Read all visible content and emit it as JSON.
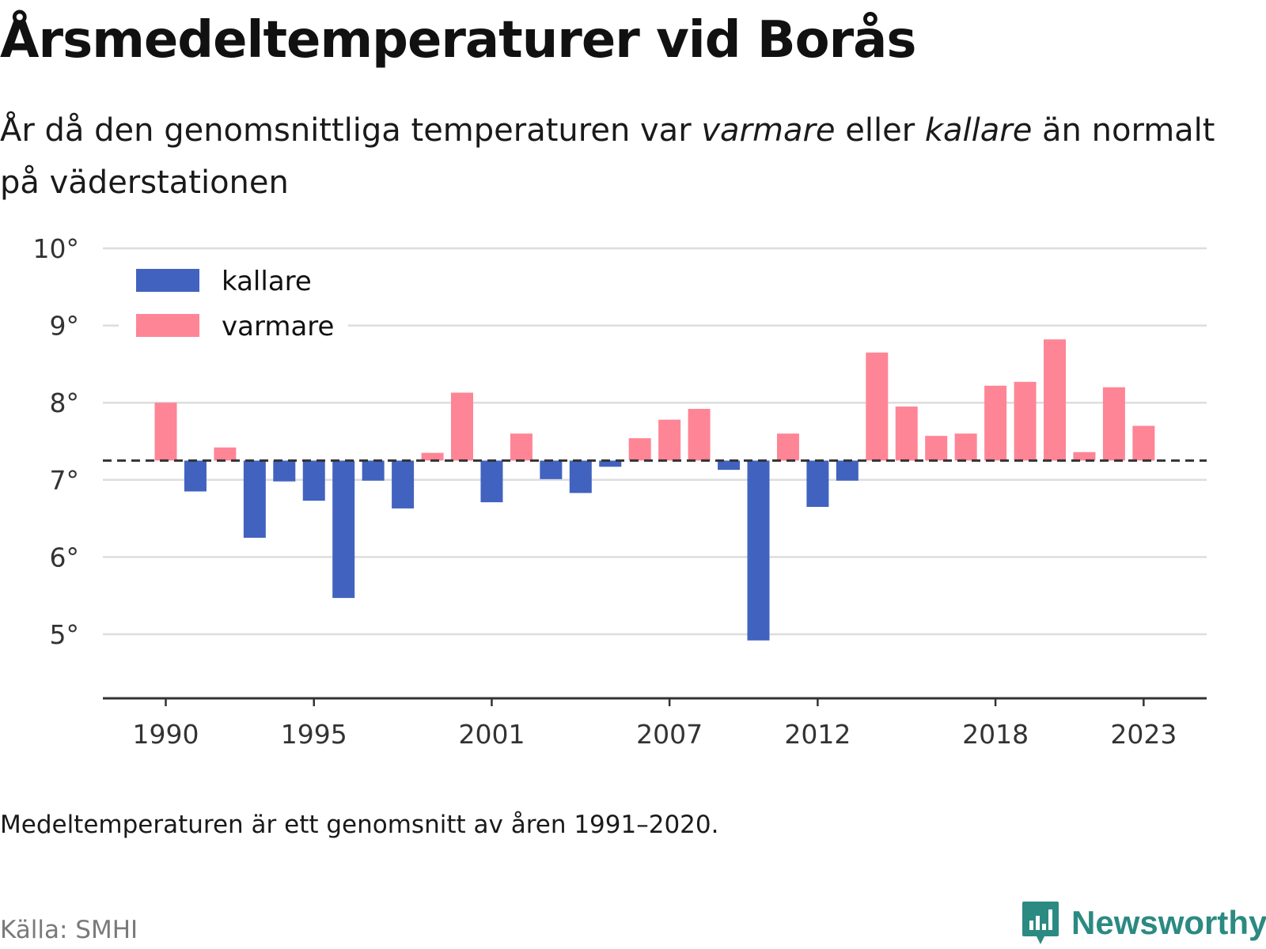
{
  "title": "Årsmedeltemperaturer vid Borås",
  "subtitle": {
    "part1": "År då den genomsnittliga temperaturen var ",
    "warm_word": "varmare",
    "part2": " eller ",
    "cold_word": "kallare",
    "part3": " än normalt på väderstationen"
  },
  "note": "Medeltemperaturen är ett genomsnitt av åren 1991–2020.",
  "source": "Källa: SMHI",
  "brand": {
    "name": "Newsworthy",
    "icon": "newsworthy-logo-icon"
  },
  "colors": {
    "kallare": "#4163bf",
    "varmare": "#fe8595",
    "baseline": "#333333",
    "grid": "#dddddd",
    "axis": "#333333",
    "brand": "#2b8a82"
  },
  "chart_data": {
    "type": "bar",
    "baseline": 7.25,
    "ylim": [
      4.2,
      10
    ],
    "y_ticks": [
      5,
      6,
      7,
      8,
      9,
      10
    ],
    "y_tick_labels": [
      "5°",
      "6°",
      "7°",
      "8°",
      "9°",
      "10°"
    ],
    "x_ticks": [
      1990,
      1995,
      2001,
      2007,
      2012,
      2018,
      2023
    ],
    "x_tick_labels": [
      "1990",
      "1995",
      "2001",
      "2007",
      "2012",
      "2018",
      "2023"
    ],
    "legend": [
      {
        "name": "kallare",
        "color": "#4163bf"
      },
      {
        "name": "varmare",
        "color": "#fe8595"
      }
    ],
    "legend_position": "top-left",
    "grid": true,
    "years": [
      1990,
      1991,
      1992,
      1993,
      1994,
      1995,
      1996,
      1997,
      1998,
      1999,
      2000,
      2001,
      2002,
      2003,
      2004,
      2005,
      2006,
      2007,
      2008,
      2009,
      2010,
      2011,
      2012,
      2013,
      2014,
      2015,
      2016,
      2017,
      2018,
      2019,
      2020,
      2021,
      2022,
      2023
    ],
    "values": [
      8.0,
      6.85,
      7.42,
      6.25,
      6.98,
      6.73,
      5.47,
      6.99,
      6.63,
      7.35,
      8.13,
      6.71,
      7.6,
      7.01,
      6.83,
      7.17,
      7.54,
      7.78,
      7.92,
      7.13,
      4.92,
      7.6,
      6.65,
      6.99,
      8.65,
      7.95,
      7.57,
      7.6,
      8.22,
      8.27,
      8.82,
      7.36,
      8.2,
      7.7
    ]
  }
}
